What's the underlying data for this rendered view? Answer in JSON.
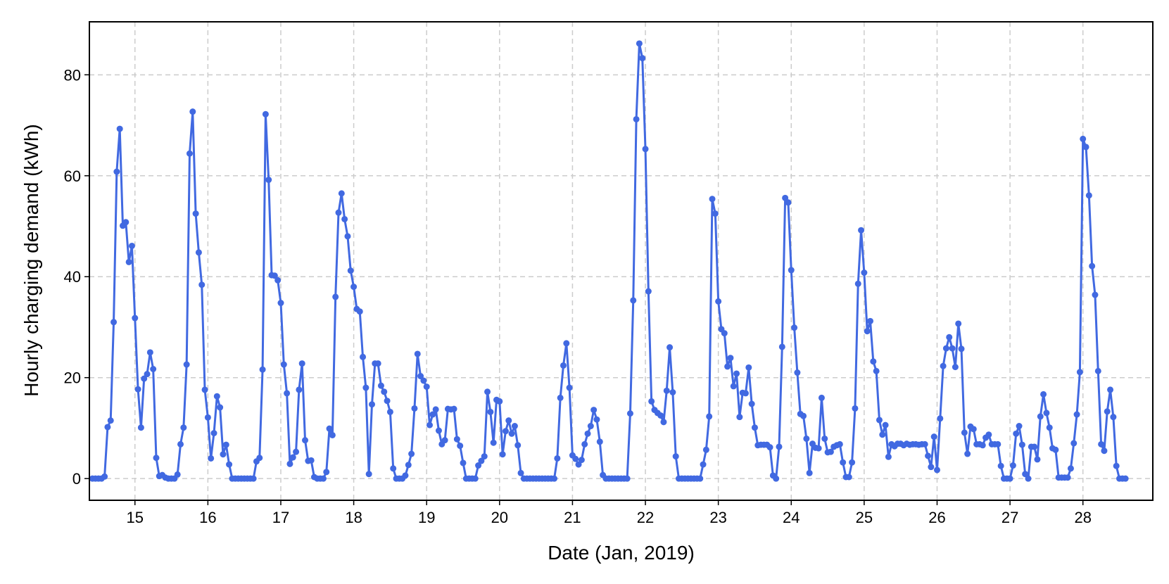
{
  "chart_data": {
    "type": "line",
    "title": "",
    "xlabel": "Date (Jan, 2019)",
    "ylabel": "Hourly charging demand (kWh)",
    "xlim": [
      "2019-01-14 09:00",
      "2019-01-28 23:00"
    ],
    "ylim": [
      -4.3,
      90.5
    ],
    "x_ticks": [
      15,
      16,
      17,
      18,
      19,
      20,
      21,
      22,
      23,
      24,
      25,
      26,
      27,
      28
    ],
    "x_tick_labels": [
      "15",
      "16",
      "17",
      "18",
      "19",
      "20",
      "21",
      "22",
      "23",
      "24",
      "25",
      "26",
      "27",
      "28"
    ],
    "y_ticks": [
      0,
      20,
      40,
      60,
      80
    ],
    "y_tick_labels": [
      "0",
      "20",
      "40",
      "60",
      "80"
    ],
    "grid": true,
    "grid_style": "dashed",
    "legend": "none",
    "x_start": "2019-01-14 10:00",
    "x_step": "1 hour",
    "series": [
      {
        "color": "#4169E1",
        "marker": "circle",
        "values": [
          0,
          0,
          0,
          0,
          0.4,
          10.2,
          11.5,
          31,
          60.8,
          69.3,
          50.1,
          50.8,
          42.9,
          46.1,
          31.8,
          17.7,
          10.1,
          19.8,
          20.7,
          25,
          21.7,
          4.1,
          0.5,
          0.7,
          0.2,
          0,
          0,
          0,
          0.8,
          6.8,
          10.1,
          22.6,
          64.4,
          72.7,
          52.5,
          44.8,
          38.4,
          17.6,
          12.1,
          4,
          9,
          16.3,
          14.1,
          4.8,
          6.7,
          2.8,
          0,
          0,
          0,
          0,
          0,
          0,
          0,
          0,
          3.4,
          4.1,
          21.6,
          72.2,
          59.2,
          40.3,
          40.2,
          39.3,
          34.8,
          22.6,
          16.9,
          2.9,
          4.2,
          5.3,
          17.6,
          22.8,
          7.6,
          3.5,
          3.6,
          0.3,
          0,
          0,
          0,
          1.3,
          9.9,
          8.6,
          36,
          52.7,
          56.5,
          51.4,
          48,
          41.2,
          38,
          33.6,
          33.1,
          24.1,
          18,
          0.9,
          14.7,
          22.8,
          22.8,
          18.4,
          17.2,
          15.4,
          13.2,
          2,
          0,
          0,
          0,
          0.6,
          2.7,
          4.9,
          13.9,
          24.7,
          20.3,
          19.4,
          18.2,
          10.6,
          12.7,
          13.7,
          9.5,
          6.8,
          7.6,
          13.8,
          13.7,
          13.8,
          7.8,
          6.5,
          3.1,
          0,
          0,
          0,
          0,
          2.6,
          3.5,
          4.4,
          17.2,
          13.2,
          7.1,
          15.6,
          15.3,
          4.8,
          9.4,
          11.5,
          8.9,
          10.4,
          6.6,
          1.1,
          0,
          0,
          0,
          0,
          0,
          0,
          0,
          0,
          0,
          0,
          0,
          4,
          16,
          22.4,
          26.8,
          18,
          4.6,
          3.9,
          2.8,
          3.7,
          6.8,
          8.9,
          10.4,
          13.6,
          11.7,
          7.3,
          0.7,
          0,
          0,
          0,
          0,
          0,
          0,
          0,
          0,
          12.9,
          35.3,
          71.2,
          86.2,
          83.3,
          65.3,
          37.1,
          15.3,
          13.6,
          13,
          12.5,
          11.2,
          17.4,
          26,
          17.1,
          4.4,
          0,
          0,
          0,
          0,
          0,
          0,
          0,
          0,
          2.8,
          5.7,
          12.3,
          55.4,
          52.5,
          35.1,
          29.6,
          28.8,
          22.2,
          23.9,
          18.3,
          20.8,
          12.2,
          17,
          16.9,
          22,
          14.8,
          10.1,
          6.6,
          6.7,
          6.7,
          6.7,
          6.2,
          0.6,
          0,
          6.3,
          26.1,
          55.6,
          54.7,
          41.3,
          29.9,
          21,
          12.8,
          12.4,
          7.9,
          1.1,
          6.9,
          6.1,
          6,
          16,
          7.9,
          5.2,
          5.3,
          6.3,
          6.6,
          6.8,
          3.2,
          0.3,
          0.3,
          3.2,
          13.9,
          38.6,
          49.2,
          40.8,
          29.2,
          31.2,
          23.2,
          21.3,
          11.6,
          8.7,
          10.6,
          4.3,
          6.8,
          6.4,
          6.9,
          6.9,
          6.6,
          6.9,
          6.7,
          6.8,
          6.8,
          6.7,
          6.8,
          6.8,
          4.5,
          2.3,
          8.3,
          1.7,
          11.9,
          22.3,
          25.8,
          28,
          25.8,
          22.1,
          30.7,
          25.7,
          9.1,
          4.9,
          10.3,
          9.8,
          6.8,
          6.8,
          6.6,
          8.1,
          8.7,
          6.8,
          6.8,
          6.8,
          2.5,
          0,
          0,
          0,
          2.6,
          8.9,
          10.4,
          6.7,
          0.9,
          0,
          6.3,
          6.3,
          3.8,
          12.3,
          16.7,
          13,
          10.1,
          6,
          5.7,
          0.2,
          0.2,
          0.2,
          0.2,
          2,
          7,
          12.7,
          21.1,
          67.3,
          65.7,
          56.1,
          42.1,
          36.4,
          21.3,
          6.8,
          5.5,
          13.3,
          17.6,
          12.2,
          2.5,
          0,
          0,
          0
        ]
      }
    ]
  }
}
